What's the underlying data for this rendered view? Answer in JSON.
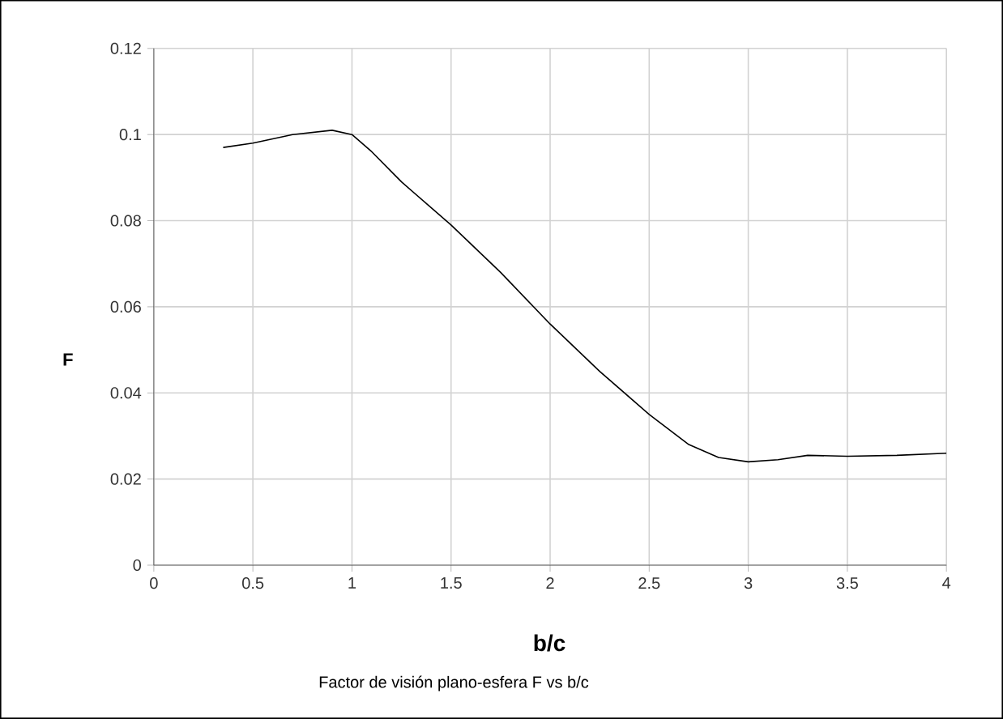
{
  "chart_data": {
    "type": "line",
    "title": "Factor de visión plano-esfera F vs b/c",
    "xlabel": "b/c",
    "ylabel": "F",
    "x": [
      0.35,
      0.5,
      0.7,
      0.9,
      1.0,
      1.1,
      1.25,
      1.5,
      1.75,
      2.0,
      2.25,
      2.5,
      2.7,
      2.85,
      3.0,
      3.15,
      3.3,
      3.5,
      3.75,
      4.0
    ],
    "values": [
      0.097,
      0.098,
      0.1,
      0.101,
      0.1,
      0.096,
      0.089,
      0.079,
      0.068,
      0.056,
      0.045,
      0.035,
      0.028,
      0.025,
      0.024,
      0.0245,
      0.0255,
      0.0253,
      0.0255,
      0.026
    ],
    "color": "#000000",
    "xlim": [
      0,
      4
    ],
    "ylim": [
      0,
      0.12
    ],
    "xticks": [
      0,
      0.5,
      1,
      1.5,
      2,
      2.5,
      3,
      3.5,
      4
    ],
    "yticks": [
      0,
      0.02,
      0.04,
      0.06,
      0.08,
      0.1,
      0.12
    ],
    "grid": true,
    "marker": "none",
    "line_style": "solid"
  }
}
